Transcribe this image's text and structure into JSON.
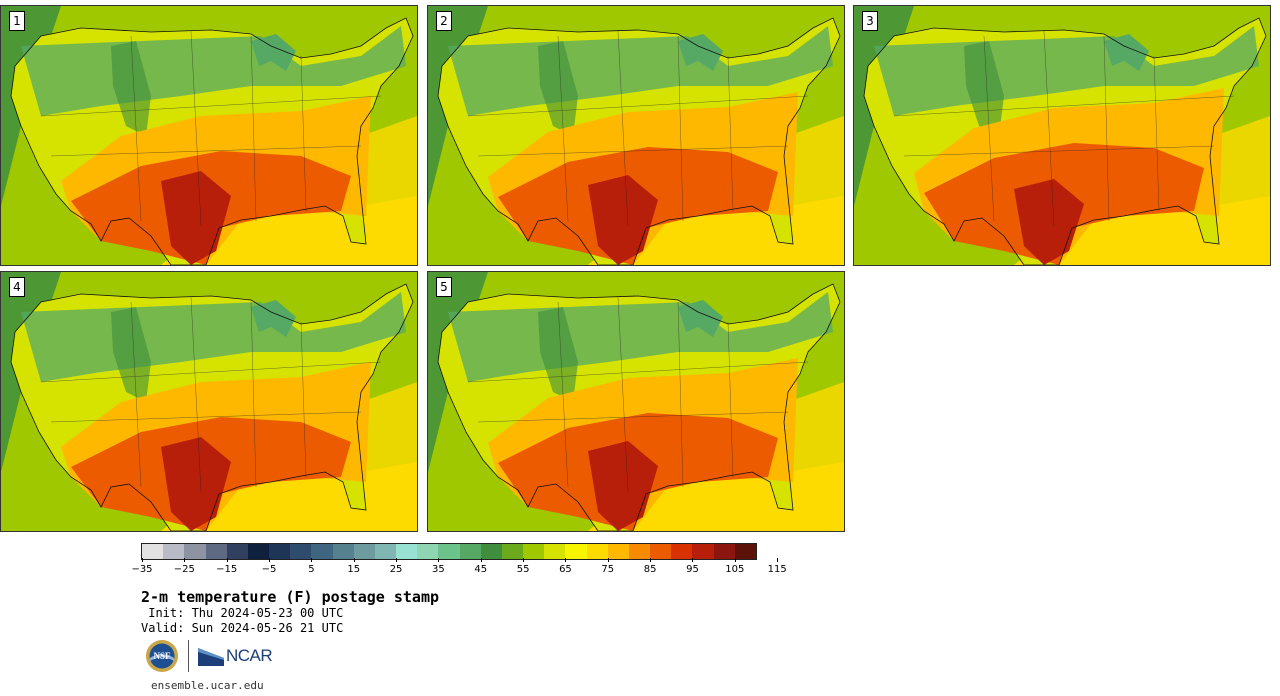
{
  "title": "2-m temperature (F) postage stamp",
  "init": " Init: Thu 2024-05-23 00 UTC",
  "valid": "Valid: Sun 2024-05-26 21 UTC",
  "footer_url": "ensemble.ucar.edu",
  "logos": {
    "nsf_text": "NSF",
    "ncar_text": "NCAR"
  },
  "members": [
    {
      "label": "1"
    },
    {
      "label": "2"
    },
    {
      "label": "3"
    },
    {
      "label": "4"
    },
    {
      "label": "5"
    }
  ],
  "colorbar": {
    "tick_labels": [
      "-35",
      "-25",
      "-15",
      "-5",
      "5",
      "15",
      "25",
      "35",
      "45",
      "55",
      "65",
      "75",
      "85",
      "95",
      "105",
      "115"
    ],
    "colors": [
      "#e2e2e2",
      "#b9bbc7",
      "#8d93a3",
      "#5e6a82",
      "#31405e",
      "#0f1f3e",
      "#1e3558",
      "#2f4c6f",
      "#3f6581",
      "#55808d",
      "#6e9ba0",
      "#81b7b3",
      "#98e2d3",
      "#8ed6b1",
      "#6cc28b",
      "#56a965",
      "#3f8e3e",
      "#6baa1c",
      "#9fc800",
      "#d6e300",
      "#f7f500",
      "#fedb00",
      "#feb800",
      "#f88a00",
      "#ec5b00",
      "#d93200",
      "#b81f0a",
      "#8d150f",
      "#5c1208"
    ]
  },
  "map_palette": {
    "ocean_cold": "#3f8e3e",
    "ocean_mid": "#9fc800",
    "ocean_warm": "#fedb00",
    "cool": "#56a965",
    "mild": "#d6e300",
    "warm": "#feb800",
    "hot": "#ec5b00",
    "very_hot": "#b81f0a"
  }
}
